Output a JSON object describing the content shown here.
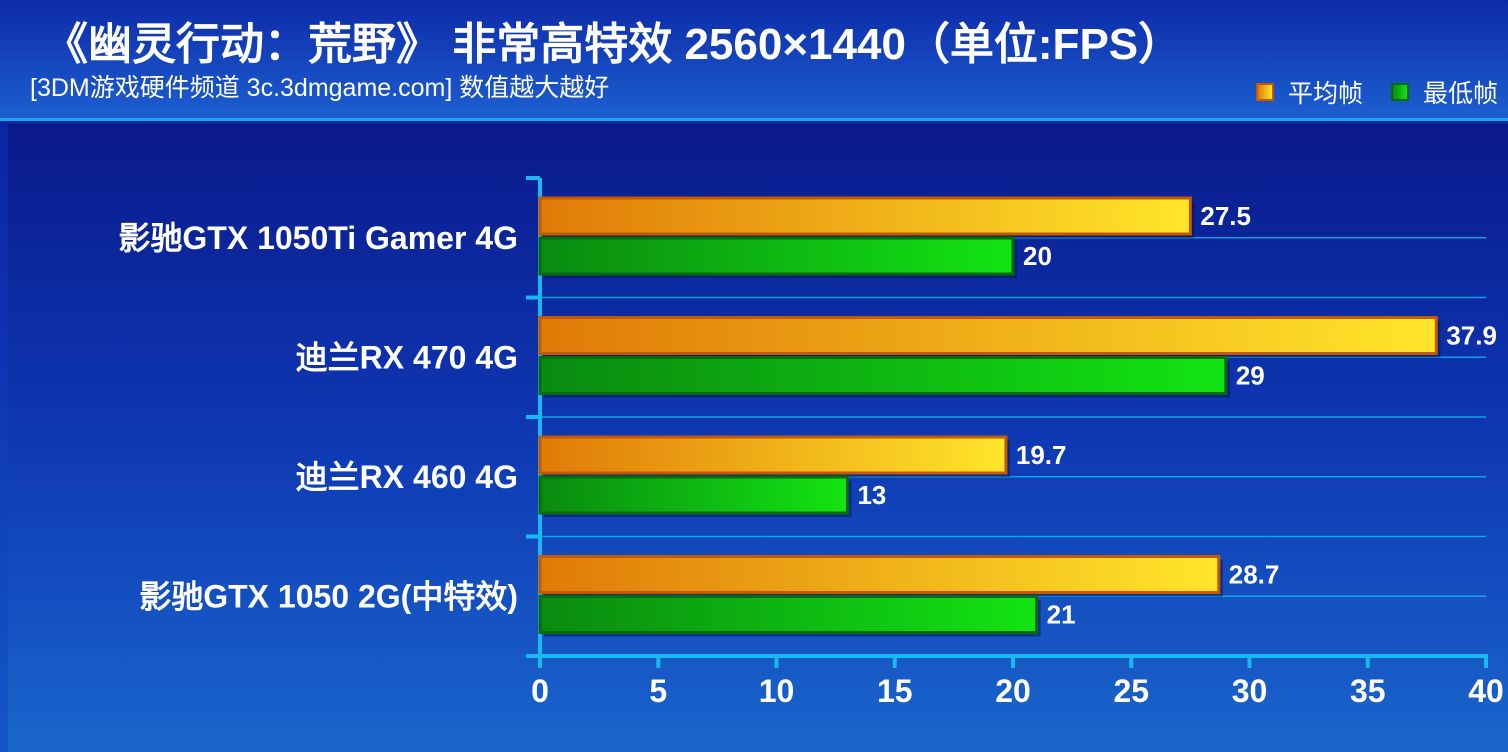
{
  "header": {
    "title": "《幽灵行动：荒野》 非常高特效 2560×1440（单位:FPS）",
    "subtitle": "[3DM游戏硬件频道 3c.3dmgame.com] 数值越大越好"
  },
  "legend": {
    "avg_label": "平均帧",
    "min_label": "最低帧"
  },
  "colors": {
    "avg_start": "#e07a08",
    "avg_end": "#ffe62a",
    "avg_border": "#c45a00",
    "min_start": "#0a8a10",
    "min_end": "#12e412",
    "min_border": "#0a6a10",
    "axis": "#19b8f0"
  },
  "chart_data": {
    "type": "bar",
    "orientation": "horizontal",
    "title": "《幽灵行动：荒野》 非常高特效 2560×1440（单位:FPS）",
    "subtitle": "[3DM游戏硬件频道 3c.3dmgame.com] 数值越大越好",
    "categories": [
      "影驰GTX 1050Ti Gamer 4G",
      "迪兰RX 470 4G",
      "迪兰RX 460 4G",
      "影驰GTX 1050 2G(中特效)"
    ],
    "series": [
      {
        "name": "平均帧",
        "values": [
          27.5,
          37.9,
          19.7,
          28.7
        ]
      },
      {
        "name": "最低帧",
        "values": [
          20,
          29,
          13,
          21
        ]
      }
    ],
    "value_labels": [
      [
        "27.5",
        "37.9",
        "19.7",
        "28.7"
      ],
      [
        "20",
        "29",
        "13",
        "21"
      ]
    ],
    "xlim": [
      0,
      40
    ],
    "xticks": [
      0,
      5,
      10,
      15,
      20,
      25,
      30,
      35,
      40
    ],
    "grid": true,
    "legend_position": "top-right"
  }
}
